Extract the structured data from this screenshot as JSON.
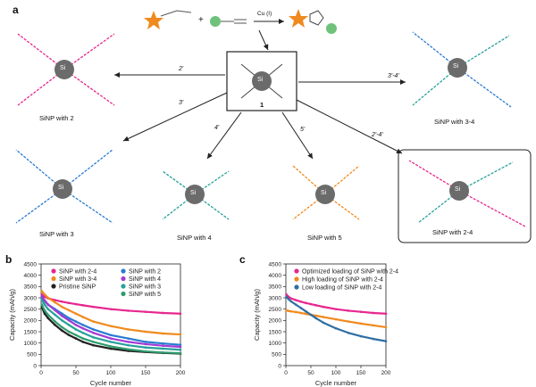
{
  "panels": {
    "a": "a",
    "b": "b",
    "c": "c"
  },
  "scheme": {
    "catalyst": "Cu (I)",
    "center_label": "1",
    "core_label": "Si",
    "plus": "+",
    "arrow_labels": [
      "2'",
      "3'",
      "4'",
      "5'",
      "3'-4'",
      "2'-4'"
    ],
    "products": [
      "SiNP with 2",
      "SiNP with 3",
      "SiNP with 4",
      "SiNP with 5",
      "SiNP with 3-4",
      "SiNP with 2-4"
    ]
  },
  "colors": {
    "magenta": "#e6278f",
    "orange": "#f08a1e",
    "black": "#222222",
    "blue": "#2a7bd1",
    "purple": "#a23bd4",
    "green": "#2f9c6e",
    "teal": "#27a19a",
    "steel": "#2f6ea3",
    "grey_core": "#6b6b6b"
  },
  "chart_data": [
    {
      "type": "line",
      "panel": "b",
      "xlabel": "Cycle number",
      "ylabel": "Capacity (mAh/g)",
      "xlim": [
        0,
        200
      ],
      "ylim": [
        0,
        4500
      ],
      "xticks": [
        0,
        50,
        100,
        150,
        200
      ],
      "yticks": [
        0,
        500,
        1000,
        1500,
        2000,
        2500,
        3000,
        3500,
        4000,
        4500
      ],
      "x": [
        1,
        5,
        10,
        20,
        30,
        40,
        50,
        60,
        75,
        100,
        125,
        150,
        175,
        200
      ],
      "series": [
        {
          "name": "SiNP with 2-4",
          "color": "#e6278f",
          "values": [
            3150,
            3050,
            2980,
            2900,
            2830,
            2770,
            2720,
            2670,
            2600,
            2500,
            2430,
            2380,
            2330,
            2300
          ]
        },
        {
          "name": "SiNP with 3-4",
          "color": "#f08a1e",
          "values": [
            3300,
            3150,
            3000,
            2800,
            2600,
            2450,
            2300,
            2150,
            1950,
            1750,
            1600,
            1500,
            1420,
            1380
          ]
        },
        {
          "name": "Pristine SiNP",
          "color": "#222222",
          "values": [
            2600,
            2300,
            2100,
            1800,
            1550,
            1350,
            1200,
            1050,
            900,
            750,
            650,
            600,
            560,
            530
          ]
        },
        {
          "name": "SiNP with 2",
          "color": "#2a7bd1",
          "values": [
            3000,
            2850,
            2700,
            2500,
            2300,
            2100,
            1950,
            1800,
            1600,
            1350,
            1200,
            1050,
            980,
            920
          ]
        },
        {
          "name": "SiNP with 4",
          "color": "#a23bd4",
          "values": [
            3100,
            2900,
            2700,
            2450,
            2200,
            2000,
            1800,
            1650,
            1450,
            1200,
            1050,
            950,
            880,
            830
          ]
        },
        {
          "name": "SiNP with 3",
          "color": "#27a19a",
          "values": [
            2900,
            2700,
            2500,
            2250,
            2000,
            1800,
            1600,
            1450,
            1250,
            1050,
            900,
            800,
            750,
            700
          ]
        },
        {
          "name": "SiNP with 5",
          "color": "#2f9c6e",
          "values": [
            2700,
            2450,
            2250,
            1950,
            1700,
            1500,
            1350,
            1200,
            1050,
            850,
            720,
            630,
            580,
            550
          ]
        }
      ]
    },
    {
      "type": "line",
      "panel": "c",
      "xlabel": "Cycle number",
      "ylabel": "Capacity (mAh/g)",
      "xlim": [
        0,
        200
      ],
      "ylim": [
        0,
        4500
      ],
      "xticks": [
        0,
        50,
        100,
        150,
        200
      ],
      "yticks": [
        0,
        500,
        1000,
        1500,
        2000,
        2500,
        3000,
        3500,
        4000,
        4500
      ],
      "x": [
        1,
        5,
        10,
        20,
        30,
        40,
        50,
        60,
        75,
        100,
        125,
        150,
        175,
        200
      ],
      "series": [
        {
          "name": "Optimized loading of SiNP with 2-4",
          "color": "#e6278f",
          "values": [
            3150,
            3050,
            2980,
            2900,
            2830,
            2770,
            2720,
            2670,
            2600,
            2500,
            2430,
            2380,
            2330,
            2300
          ]
        },
        {
          "name": "High loading of SiNP with 2-4",
          "color": "#f08a1e",
          "values": [
            2450,
            2420,
            2400,
            2370,
            2330,
            2290,
            2250,
            2210,
            2150,
            2050,
            1950,
            1860,
            1780,
            1700
          ]
        },
        {
          "name": "Low loading of SiNP with 2-4",
          "color": "#2f6ea3",
          "values": [
            3050,
            2950,
            2850,
            2700,
            2550,
            2400,
            2250,
            2100,
            1900,
            1650,
            1450,
            1300,
            1180,
            1080
          ]
        }
      ]
    }
  ]
}
